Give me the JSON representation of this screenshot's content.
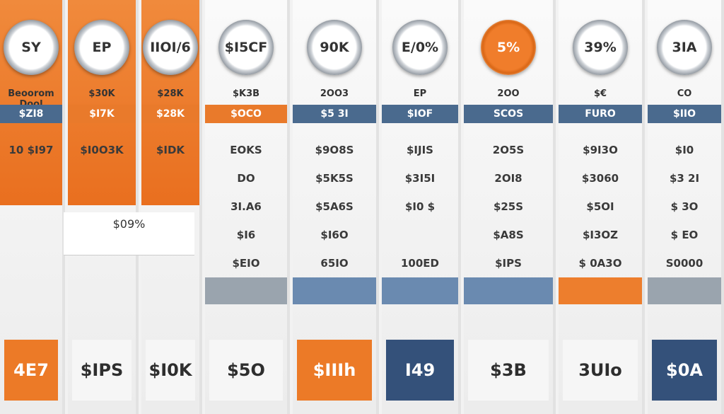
{
  "columns": [
    {
      "badge": "SY",
      "heading": "Beoorom Dool",
      "band": "$ZI8",
      "rows": [
        "10 $I97"
      ],
      "footer": "4E7"
    },
    {
      "badge": "EP",
      "heading": "$30K",
      "band": "$I7K",
      "rows": [
        "$I0O3K"
      ],
      "footer": "$IPS"
    },
    {
      "badge": "IIOI/6",
      "heading": "$28K",
      "band": "$28K",
      "rows": [
        "$IDK"
      ],
      "footer": "$I0K"
    },
    {
      "badge": "$I5CF",
      "heading": "$K3B",
      "band": "$OCO",
      "rows": [
        "EOKS",
        "DO",
        "3I.A6",
        "$I6",
        "$EIO"
      ],
      "footer": "$5O"
    },
    {
      "badge": "90K",
      "heading": "2OO3",
      "band": "$5 3I",
      "rows": [
        "$9O8S",
        "$5K5S",
        "$5A6S",
        "$I6O",
        "65IO"
      ],
      "footer": "$IIIh"
    },
    {
      "badge": "E/0%",
      "heading": "EP",
      "band": "$IOF",
      "rows": [
        "$IJIS",
        "$3I5I",
        "$I0 $",
        "",
        "100ED"
      ],
      "footer": "I49"
    },
    {
      "badge": "5%",
      "heading": "2OO",
      "band": "SCOS",
      "rows": [
        "2O5S",
        "2OI8",
        "$25S",
        "$A8S",
        "$IPS"
      ],
      "footer": "$3B"
    },
    {
      "badge": "39%",
      "heading": "$€",
      "band": "FURO",
      "rows": [
        "$9I3O",
        "$3060",
        "$5OI",
        "$I3OZ",
        "$ 0A3O"
      ],
      "footer": "3UIo"
    },
    {
      "badge": "3IA",
      "heading": "CO",
      "band": "$IIO",
      "rows": [
        "$I0",
        "$3 2I",
        "$ 3O",
        "$ EO",
        "S0000"
      ],
      "footer": "$0A"
    }
  ],
  "note": "$09%"
}
